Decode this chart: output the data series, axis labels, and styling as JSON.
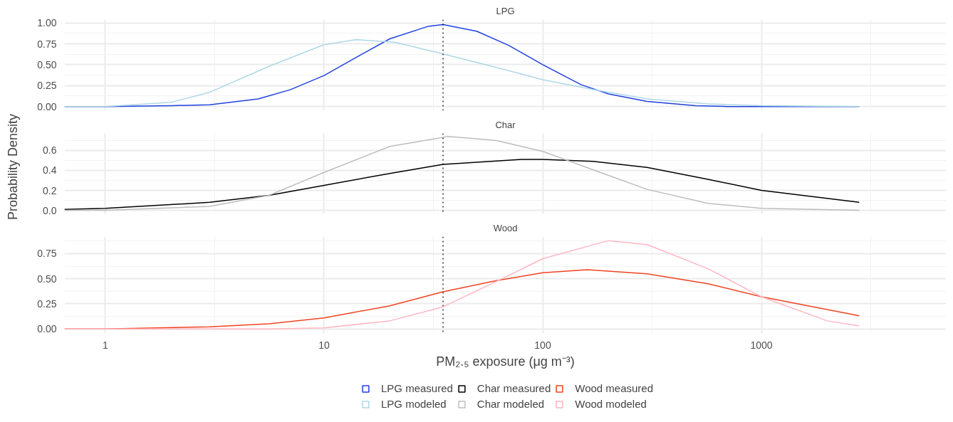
{
  "chart_data": [
    {
      "type": "line",
      "title": "LPG",
      "xlim": [
        0.65,
        7000
      ],
      "log": "x",
      "xticks": [
        1,
        10,
        100,
        1000
      ],
      "ylim": [
        -0.05,
        1.04
      ],
      "yticks": [
        {
          "value": 0,
          "label": "0.00"
        },
        {
          "value": 0.25,
          "label": "0.25"
        },
        {
          "value": 0.5,
          "label": "0.50"
        },
        {
          "value": 0.75,
          "label": "0.75"
        },
        {
          "value": 1,
          "label": "1.00"
        }
      ],
      "tick_labels": "y",
      "grid": true,
      "legend": "bottom",
      "ref_lines": [
        {
          "axis": "x",
          "value": 35,
          "label": null,
          "color": "#000000",
          "line_style": "dotted"
        }
      ],
      "series": [
        {
          "name": "LPG measured",
          "color": "#2040e0",
          "x": [
            0.65,
            1,
            2,
            3,
            5,
            7,
            10,
            15,
            20,
            30,
            35,
            50,
            70,
            100,
            150,
            200,
            300,
            500,
            700,
            1000,
            2800
          ],
          "values": [
            0,
            0,
            0.01,
            0.02,
            0.09,
            0.2,
            0.37,
            0.63,
            0.81,
            0.96,
            0.98,
            0.9,
            0.73,
            0.5,
            0.26,
            0.15,
            0.06,
            0.01,
            0.0,
            0,
            0
          ]
        },
        {
          "name": "LPG modeled",
          "color": "#add8e6",
          "x": [
            0.65,
            1,
            2,
            3,
            5.6,
            10,
            14,
            21,
            35,
            61,
            100,
            173,
            300,
            570,
            1000,
            2800
          ],
          "values": [
            0,
            0,
            0.05,
            0.17,
            0.48,
            0.74,
            0.8,
            0.77,
            0.63,
            0.47,
            0.32,
            0.2,
            0.09,
            0.03,
            0.01,
            0
          ]
        }
      ]
    },
    {
      "type": "line",
      "title": "Char",
      "ylabel": "Probability Density",
      "xlim": [
        0.65,
        7000
      ],
      "log": "x",
      "xticks": [
        1,
        10,
        100,
        1000
      ],
      "ylim": [
        -0.035,
        0.77
      ],
      "yticks": [
        {
          "value": 0,
          "label": "0.0"
        },
        {
          "value": 0.2,
          "label": "0.2"
        },
        {
          "value": 0.4,
          "label": "0.4"
        },
        {
          "value": 0.6,
          "label": "0.6"
        }
      ],
      "tick_labels": "y",
      "grid": true,
      "legend": "bottom",
      "ref_lines": [
        {
          "axis": "x",
          "value": 35,
          "label": null,
          "color": "#000000",
          "line_style": "dotted"
        }
      ],
      "series": [
        {
          "name": "Char measured",
          "color": "#000000",
          "x": [
            0.65,
            1,
            3,
            5.6,
            10,
            20,
            35,
            80,
            100,
            170,
            300,
            570,
            1000,
            2800
          ],
          "values": [
            0.01,
            0.02,
            0.08,
            0.15,
            0.25,
            0.37,
            0.46,
            0.51,
            0.51,
            0.49,
            0.43,
            0.31,
            0.2,
            0.08
          ]
        },
        {
          "name": "Char modeled",
          "color": "#bdbdbd",
          "x": [
            0.65,
            1,
            3,
            5.6,
            10,
            20,
            37,
            61,
            100,
            173,
            300,
            570,
            1000,
            2800
          ],
          "values": [
            0,
            0,
            0.04,
            0.15,
            0.38,
            0.64,
            0.74,
            0.7,
            0.59,
            0.4,
            0.21,
            0.07,
            0.02,
            0
          ]
        }
      ]
    },
    {
      "type": "line",
      "title": "Wood",
      "xlabel": "PM₂.₅ exposure (μg m⁻³)",
      "xlim": [
        0.65,
        7000
      ],
      "log": "x",
      "xticks": [
        1,
        10,
        100,
        1000
      ],
      "ylim": [
        -0.045,
        0.92
      ],
      "yticks": [
        {
          "value": 0,
          "label": "0.00"
        },
        {
          "value": 0.25,
          "label": "0.25"
        },
        {
          "value": 0.5,
          "label": "0.50"
        },
        {
          "value": 0.75,
          "label": "0.75"
        }
      ],
      "grid": true,
      "legend": "bottom",
      "ref_lines": [
        {
          "axis": "x",
          "value": 35,
          "label": null,
          "color": "#000000",
          "line_style": "dotted"
        }
      ],
      "series": [
        {
          "name": "Wood measured",
          "color": "#ee4422",
          "x": [
            0.65,
            1,
            3,
            5.6,
            10,
            20,
            35,
            61,
            100,
            160,
            300,
            570,
            1000,
            2800
          ],
          "values": [
            0,
            0,
            0.02,
            0.05,
            0.11,
            0.23,
            0.37,
            0.48,
            0.56,
            0.59,
            0.55,
            0.45,
            0.32,
            0.13
          ]
        },
        {
          "name": "Wood modeled",
          "color": "#ffb6c1",
          "x": [
            0.65,
            1,
            3,
            5.6,
            10,
            20,
            35,
            61,
            100,
            200,
            300,
            570,
            1000,
            2000,
            2800
          ],
          "values": [
            0,
            0,
            0,
            0,
            0.01,
            0.08,
            0.22,
            0.47,
            0.7,
            0.88,
            0.84,
            0.6,
            0.32,
            0.08,
            0.03
          ]
        }
      ]
    }
  ]
}
